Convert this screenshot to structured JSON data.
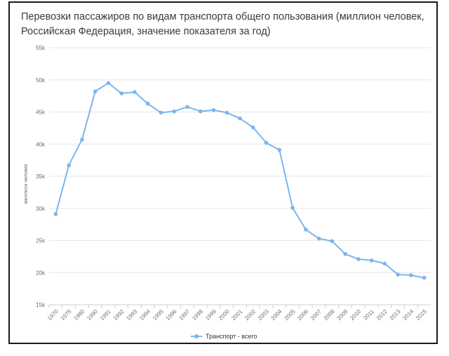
{
  "chart_data": {
    "type": "line",
    "title": "Перевозки пассажиров по видам транспорта общего пользования (миллион человек, Российская Федерация, значение показателя за год)",
    "ylabel": "миллион человек",
    "xlabel": "",
    "ylim": [
      15000,
      55000
    ],
    "yticks": [
      15000,
      20000,
      25000,
      30000,
      35000,
      40000,
      45000,
      50000,
      55000
    ],
    "ytick_labels": [
      "15k",
      "20k",
      "25k",
      "30k",
      "35k",
      "40k",
      "45k",
      "50k",
      "55k"
    ],
    "categories": [
      "1970",
      "1975",
      "1980",
      "1990",
      "1991",
      "1992",
      "1993",
      "1994",
      "1995",
      "1996",
      "1997",
      "1998",
      "1999",
      "2000",
      "2001",
      "2002",
      "2003",
      "2004",
      "2005",
      "2006",
      "2007",
      "2008",
      "2009",
      "2010",
      "2011",
      "2012",
      "2013",
      "2014",
      "2015"
    ],
    "series": [
      {
        "name": "Транспорт - всего",
        "color": "#7cb5ec",
        "values": [
          29100,
          36700,
          40700,
          48200,
          49500,
          47900,
          48100,
          46300,
          44900,
          45100,
          45800,
          45100,
          45300,
          44900,
          44000,
          42600,
          40200,
          39100,
          30100,
          26700,
          25300,
          24900,
          22900,
          22100,
          21900,
          21400,
          19700,
          19600,
          19200
        ]
      }
    ],
    "grid": true,
    "legend": "bottom-center"
  }
}
